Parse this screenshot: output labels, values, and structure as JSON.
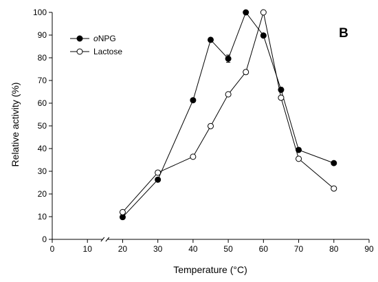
{
  "chart_data": {
    "type": "line",
    "panel_label": "B",
    "xlabel": "Temperature (°C)",
    "ylabel": "Relative activity (%)",
    "xlim": [
      0,
      90
    ],
    "ylim": [
      0,
      100
    ],
    "x_ticks": [
      0,
      10,
      20,
      30,
      40,
      50,
      60,
      70,
      80,
      90
    ],
    "y_ticks": [
      0,
      10,
      20,
      30,
      40,
      50,
      60,
      70,
      80,
      90,
      100
    ],
    "axis_break": "between 10 and 20 on x-axis",
    "grid": false,
    "legend_position": "top-left",
    "series": [
      {
        "name": "oNPG",
        "name_italic_prefix": "o",
        "name_rest": "NPG",
        "marker": "filled-circle",
        "color": "#000000",
        "x": [
          20,
          30,
          40,
          45,
          50,
          55,
          60,
          65,
          70,
          80
        ],
        "y": [
          9.8,
          26.3,
          61.3,
          87.9,
          79.6,
          100,
          89.8,
          65.9,
          39.4,
          33.6
        ],
        "error": [
          0,
          0.8,
          0,
          0.9,
          1.6,
          0,
          0,
          1.0,
          0.8,
          0.4
        ]
      },
      {
        "name": "Lactose",
        "marker": "open-circle",
        "color": "#000000",
        "x": [
          20,
          30,
          40,
          45,
          50,
          55,
          60,
          65,
          70,
          80
        ],
        "y": [
          12,
          29.4,
          36.4,
          49.9,
          63.9,
          73.7,
          100,
          62.4,
          35.5,
          22.4
        ],
        "error": [
          0,
          0,
          0.5,
          0.5,
          0,
          0.9,
          0,
          0.5,
          0,
          0.4
        ]
      }
    ]
  }
}
